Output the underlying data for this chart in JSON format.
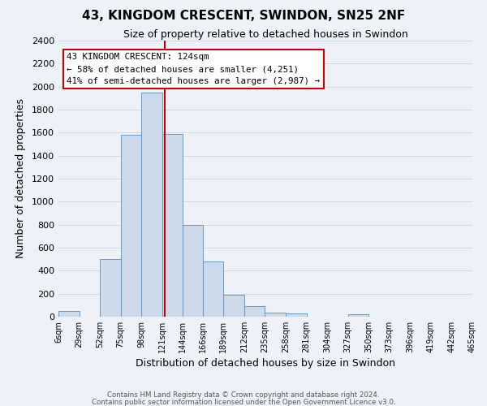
{
  "title": "43, KINGDOM CRESCENT, SWINDON, SN25 2NF",
  "subtitle": "Size of property relative to detached houses in Swindon",
  "xlabel": "Distribution of detached houses by size in Swindon",
  "ylabel": "Number of detached properties",
  "footnote1": "Contains HM Land Registry data © Crown copyright and database right 2024.",
  "footnote2": "Contains public sector information licensed under the Open Government Licence v3.0.",
  "bin_edges": [
    6,
    29,
    52,
    75,
    98,
    121,
    144,
    166,
    189,
    212,
    235,
    258,
    281,
    304,
    327,
    350,
    373,
    396,
    419,
    442,
    465
  ],
  "bar_heights": [
    50,
    0,
    500,
    1580,
    1950,
    1590,
    800,
    480,
    190,
    90,
    35,
    30,
    0,
    0,
    20,
    0,
    0,
    0,
    0,
    0
  ],
  "bar_color": "#ccdaec",
  "bar_edge_color": "#5b9bd5",
  "grid_color": "#d0d8e4",
  "bg_color": "#eef2f8",
  "vline_x": 124,
  "vline_color": "#cc0000",
  "annotation_line1": "43 KINGDOM CRESCENT: 124sqm",
  "annotation_line2": "← 58% of detached houses are smaller (4,251)",
  "annotation_line3": "41% of semi-detached houses are larger (2,987) →",
  "annotation_box_color": "#ffffff",
  "annotation_box_edge": "#cc0000",
  "ylim": [
    0,
    2400
  ],
  "yticks": [
    0,
    200,
    400,
    600,
    800,
    1000,
    1200,
    1400,
    1600,
    1800,
    2000,
    2200,
    2400
  ],
  "tick_labels": [
    "6sqm",
    "29sqm",
    "52sqm",
    "75sqm",
    "98sqm",
    "121sqm",
    "144sqm",
    "166sqm",
    "189sqm",
    "212sqm",
    "235sqm",
    "258sqm",
    "281sqm",
    "304sqm",
    "327sqm",
    "350sqm",
    "373sqm",
    "396sqm",
    "419sqm",
    "442sqm",
    "465sqm"
  ]
}
